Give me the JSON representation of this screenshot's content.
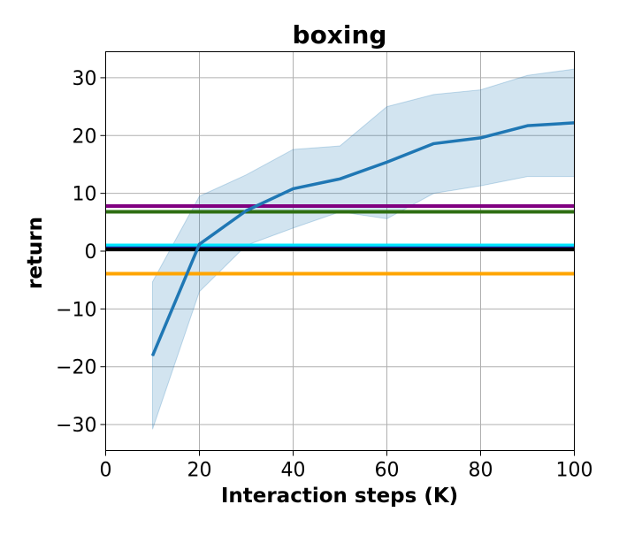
{
  "chart_data": {
    "type": "line",
    "title": "boxing",
    "xlabel": "Interaction steps (K)",
    "ylabel": "return",
    "xlim": [
      0,
      100
    ],
    "ylim": [
      -34.5,
      34.5
    ],
    "xticks": [
      0,
      20,
      40,
      60,
      80,
      100
    ],
    "yticks": [
      -30,
      -20,
      -10,
      0,
      10,
      20,
      30
    ],
    "grid": true,
    "series": [
      {
        "color": "#1f77b4",
        "x": [
          10,
          20,
          30,
          40,
          50,
          60,
          70,
          80,
          90,
          100
        ],
        "y": [
          -18.1,
          1.2,
          7.0,
          10.8,
          12.5,
          15.4,
          18.6,
          19.6,
          21.7,
          22.2
        ],
        "band_low": [
          -30.8,
          -7.0,
          1.0,
          4.0,
          6.8,
          5.6,
          10.0,
          11.3,
          12.9,
          12.9
        ],
        "band_high": [
          -5.3,
          9.5,
          13.2,
          17.6,
          18.2,
          25.0,
          27.1,
          27.9,
          30.4,
          31.5
        ]
      }
    ],
    "hlines": [
      {
        "y": 7.8,
        "color": "#800080"
      },
      {
        "y": 6.8,
        "color": "#2e6e12"
      },
      {
        "y": 1.0,
        "color": "#00e5ff"
      },
      {
        "y": 0.5,
        "color": "#1f1f9e"
      },
      {
        "y": 0.3,
        "color": "#000000"
      },
      {
        "y": -3.9,
        "color": "#ffa500"
      }
    ]
  }
}
